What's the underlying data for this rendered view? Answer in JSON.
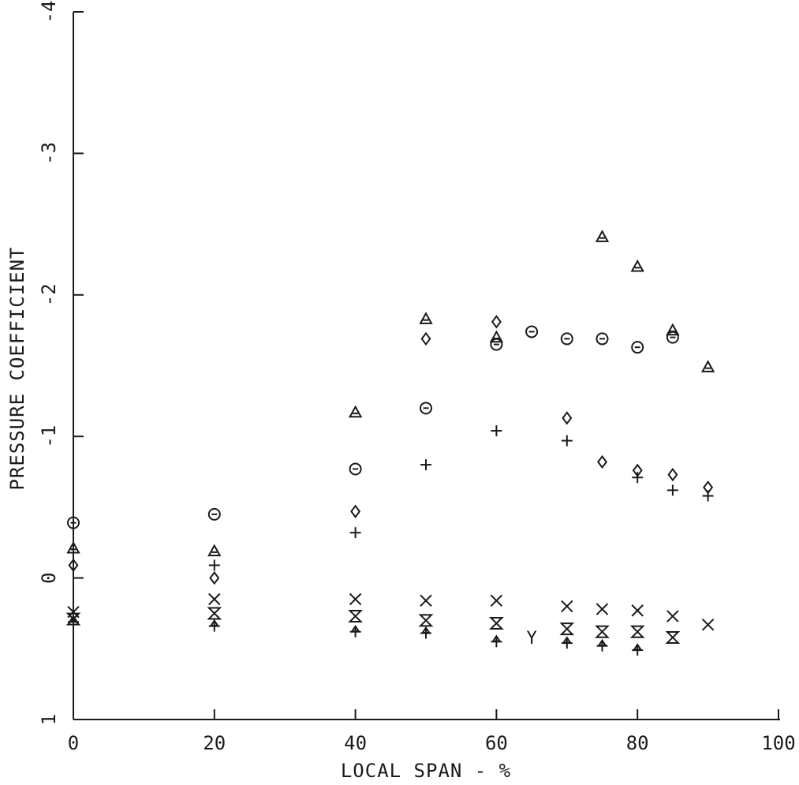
{
  "chart_data": {
    "type": "scatter",
    "title": "",
    "xlabel": "LOCAL SPAN - %",
    "ylabel": "PRESSURE COEFFICIENT",
    "xlim": [
      0,
      100
    ],
    "ylim": [
      1,
      -4
    ],
    "y_inverted": true,
    "x_ticks": [
      "0",
      "20",
      "40",
      "60",
      "80",
      "100"
    ],
    "y_ticks": [
      "1",
      "0",
      "-1",
      "-2",
      "-3",
      "-4"
    ],
    "grid": false,
    "legend": "none",
    "series": [
      {
        "marker": "triangle",
        "points": [
          {
            "x": 0,
            "y": -0.21
          },
          {
            "x": 20,
            "y": -0.19
          },
          {
            "x": 40,
            "y": -1.17
          },
          {
            "x": 50,
            "y": -1.83
          },
          {
            "x": 60,
            "y": -1.7
          },
          {
            "x": 75,
            "y": -2.41
          },
          {
            "x": 80,
            "y": -2.2
          },
          {
            "x": 85,
            "y": -1.75
          },
          {
            "x": 90,
            "y": -1.49
          }
        ]
      },
      {
        "marker": "circle",
        "points": [
          {
            "x": 0,
            "y": -0.39
          },
          {
            "x": 20,
            "y": -0.45
          },
          {
            "x": 40,
            "y": -0.77
          },
          {
            "x": 50,
            "y": -1.2
          },
          {
            "x": 60,
            "y": -1.65
          },
          {
            "x": 65,
            "y": -1.74
          },
          {
            "x": 70,
            "y": -1.69
          },
          {
            "x": 75,
            "y": -1.69
          },
          {
            "x": 80,
            "y": -1.63
          },
          {
            "x": 85,
            "y": -1.7
          }
        ]
      },
      {
        "marker": "diamond",
        "points": [
          {
            "x": 0,
            "y": -0.09
          },
          {
            "x": 20,
            "y": 0.0
          },
          {
            "x": 40,
            "y": -0.47
          },
          {
            "x": 50,
            "y": -1.69
          },
          {
            "x": 60,
            "y": -1.81
          },
          {
            "x": 70,
            "y": -1.13
          },
          {
            "x": 75,
            "y": -0.82
          },
          {
            "x": 80,
            "y": -0.76
          },
          {
            "x": 85,
            "y": -0.73
          },
          {
            "x": 90,
            "y": -0.64
          }
        ]
      },
      {
        "marker": "plus",
        "points": [
          {
            "x": 20,
            "y": -0.09
          },
          {
            "x": 40,
            "y": -0.32
          },
          {
            "x": 50,
            "y": -0.8
          },
          {
            "x": 60,
            "y": -1.04
          },
          {
            "x": 70,
            "y": -0.97
          },
          {
            "x": 80,
            "y": -0.71
          },
          {
            "x": 85,
            "y": -0.62
          },
          {
            "x": 90,
            "y": -0.58
          }
        ]
      },
      {
        "marker": "x",
        "points": [
          {
            "x": 0,
            "y": 0.24
          },
          {
            "x": 20,
            "y": 0.15
          },
          {
            "x": 40,
            "y": 0.15
          },
          {
            "x": 50,
            "y": 0.16
          },
          {
            "x": 60,
            "y": 0.16
          },
          {
            "x": 70,
            "y": 0.2
          },
          {
            "x": 75,
            "y": 0.22
          },
          {
            "x": 80,
            "y": 0.23
          },
          {
            "x": 85,
            "y": 0.27
          },
          {
            "x": 90,
            "y": 0.33
          }
        ]
      },
      {
        "marker": "hourglass",
        "points": [
          {
            "x": 0,
            "y": 0.29
          },
          {
            "x": 20,
            "y": 0.25
          },
          {
            "x": 40,
            "y": 0.27
          },
          {
            "x": 50,
            "y": 0.3
          },
          {
            "x": 60,
            "y": 0.32
          },
          {
            "x": 70,
            "y": 0.36
          },
          {
            "x": 75,
            "y": 0.38
          },
          {
            "x": 80,
            "y": 0.38
          },
          {
            "x": 85,
            "y": 0.42
          }
        ]
      },
      {
        "marker": "asterisk",
        "points": [
          {
            "x": 0,
            "y": 0.31
          },
          {
            "x": 20,
            "y": 0.34
          },
          {
            "x": 40,
            "y": 0.38
          },
          {
            "x": 50,
            "y": 0.39
          },
          {
            "x": 60,
            "y": 0.45
          },
          {
            "x": 70,
            "y": 0.46
          },
          {
            "x": 75,
            "y": 0.48
          },
          {
            "x": 80,
            "y": 0.51
          }
        ]
      },
      {
        "marker": "Y",
        "points": [
          {
            "x": 65,
            "y": 0.42
          }
        ]
      }
    ]
  }
}
